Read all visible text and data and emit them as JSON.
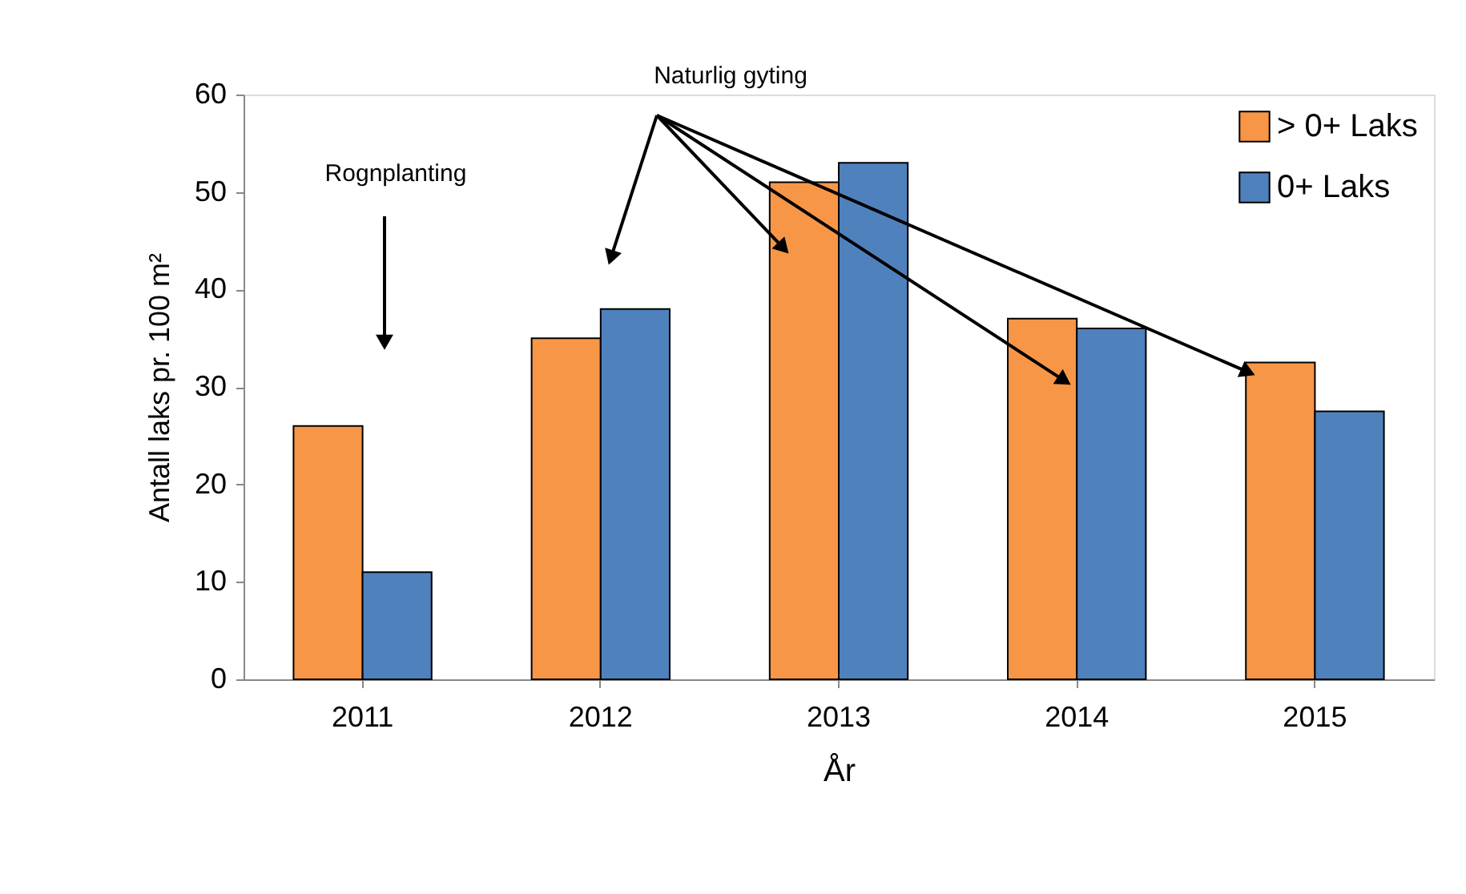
{
  "chart_data": {
    "type": "bar",
    "xlabel": "År",
    "ylabel": "Antall laks pr. 100 m²",
    "categories": [
      "2011",
      "2012",
      "2013",
      "2014",
      "2015"
    ],
    "series": [
      {
        "name": "> 0+ Laks",
        "color": "#f79646",
        "values": [
          26,
          35,
          51,
          37,
          32.5
        ]
      },
      {
        "name": "0+ Laks",
        "color": "#4f81bd",
        "values": [
          11,
          38,
          53,
          36,
          27.5
        ]
      }
    ],
    "ylim": [
      0,
      60
    ],
    "yticks": [
      0,
      10,
      20,
      30,
      40,
      50,
      60
    ],
    "grid": false,
    "legend": "top right",
    "annotations": [
      "Rognplanting",
      "Naturlig gyting"
    ]
  }
}
